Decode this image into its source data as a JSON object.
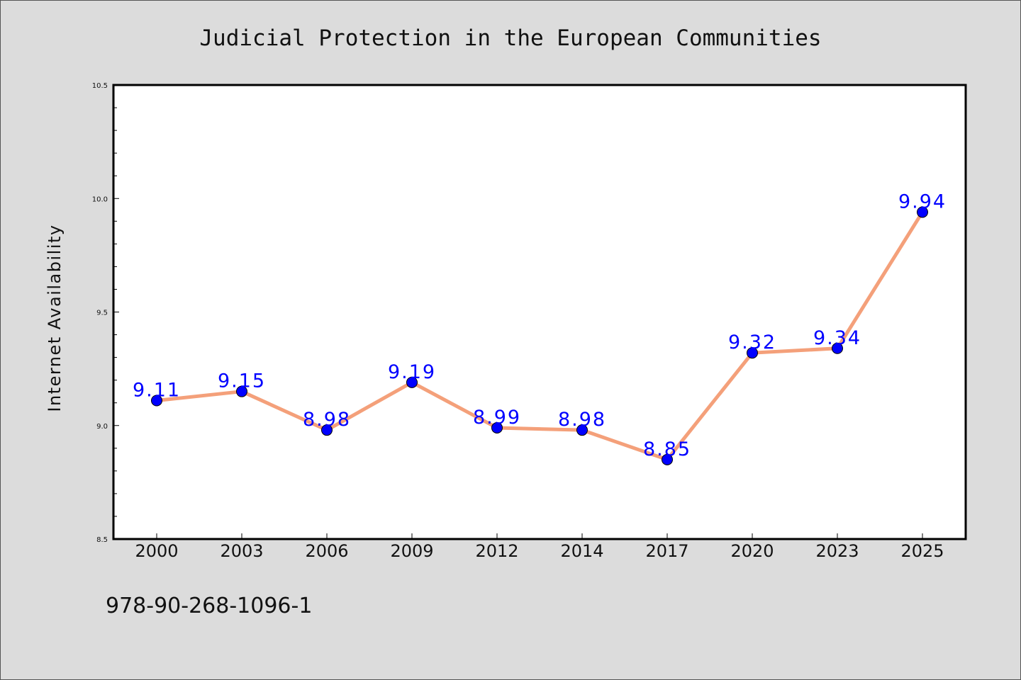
{
  "chart_data": {
    "type": "line",
    "title": "Judicial Protection in the European Communities",
    "xlabel": "",
    "ylabel": "Internet Availability",
    "categories": [
      "2000",
      "2003",
      "2006",
      "2009",
      "2012",
      "2014",
      "2017",
      "2020",
      "2023",
      "2025"
    ],
    "series": [
      {
        "values": [
          9.11,
          9.15,
          8.98,
          9.19,
          8.99,
          8.98,
          8.85,
          9.32,
          9.34,
          9.94
        ],
        "labels": [
          "9.11",
          "9.15",
          "8.98",
          "9.19",
          "8.99",
          "8.98",
          "8.85",
          "9.32",
          "9.34",
          "9.94"
        ],
        "line_color": "#f4a07a",
        "marker_color": "#0000ff"
      }
    ],
    "ylim": [
      8.5,
      10.5
    ],
    "yticks": [
      "8.5",
      "9.0",
      "9.5",
      "10.0",
      "10.5"
    ],
    "grid": false,
    "legend": "none"
  },
  "footnote": "978-90-268-1096-1",
  "colors": {
    "background": "#dcdcdc",
    "plot_background": "#ffffff",
    "line": "#f4a07a",
    "marker": "#0000ff",
    "label": "#0000ff"
  }
}
